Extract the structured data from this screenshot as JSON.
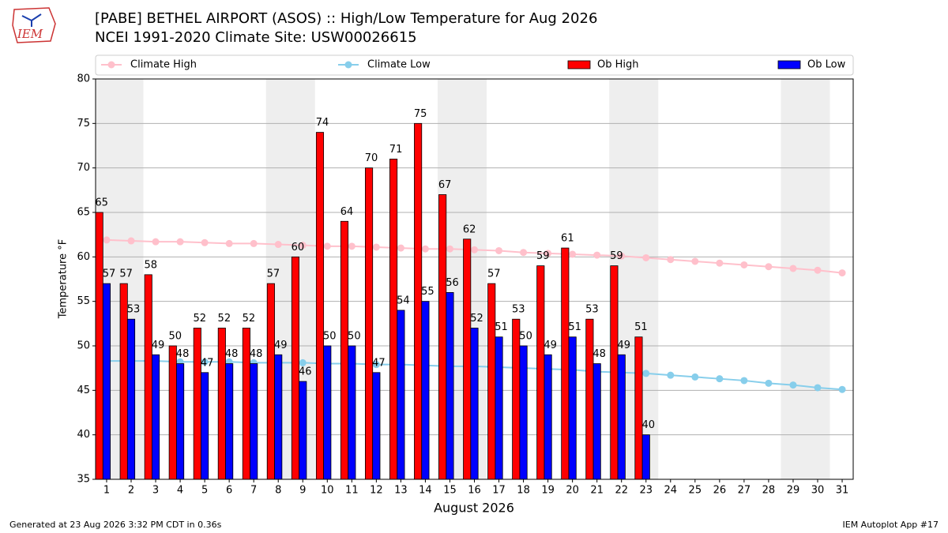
{
  "logo_text": "IEM",
  "footer_left": "Generated at 23 Aug 2026 3:32 PM CDT in 0.36s",
  "footer_right": "IEM Autoplot App #17",
  "chart_data": {
    "type": "bar",
    "title": "[PABE] BETHEL AIRPORT (ASOS) :: High/Low Temperature for Aug 2026",
    "subtitle": "NCEI 1991-2020 Climate Site: USW00026615",
    "xlabel": "August 2026",
    "ylabel": "Temperature °F",
    "x": [
      1,
      2,
      3,
      4,
      5,
      6,
      7,
      8,
      9,
      10,
      11,
      12,
      13,
      14,
      15,
      16,
      17,
      18,
      19,
      20,
      21,
      22,
      23,
      24,
      25,
      26,
      27,
      28,
      29,
      30,
      31
    ],
    "xlim": [
      0.55,
      31.45
    ],
    "xticks": [
      1,
      2,
      3,
      4,
      5,
      6,
      7,
      8,
      9,
      10,
      11,
      12,
      13,
      14,
      15,
      16,
      17,
      18,
      19,
      20,
      21,
      22,
      23,
      24,
      25,
      26,
      27,
      28,
      29,
      30,
      31
    ],
    "ylim": [
      35,
      80
    ],
    "yticks": [
      35,
      40,
      45,
      50,
      55,
      60,
      65,
      70,
      75,
      80
    ],
    "grid": true,
    "weekend_shading": [
      [
        0.5,
        2.5
      ],
      [
        7.5,
        9.5
      ],
      [
        14.5,
        16.5
      ],
      [
        21.5,
        23.5
      ],
      [
        28.5,
        30.5
      ]
    ],
    "series": [
      {
        "name": "Climate High",
        "style": "line",
        "color": "#ffc0cb",
        "values": [
          61.9,
          61.8,
          61.7,
          61.7,
          61.6,
          61.5,
          61.5,
          61.4,
          61.3,
          61.2,
          61.2,
          61.1,
          61.0,
          60.9,
          60.9,
          60.8,
          60.7,
          60.5,
          60.4,
          60.3,
          60.2,
          60.1,
          59.9,
          59.7,
          59.5,
          59.3,
          59.1,
          58.9,
          58.7,
          58.5,
          58.2
        ]
      },
      {
        "name": "Climate Low",
        "style": "line",
        "color": "#87ceeb",
        "values": [
          48.3,
          48.3,
          48.3,
          48.2,
          48.2,
          48.2,
          48.1,
          48.1,
          48.1,
          48.0,
          48.0,
          47.9,
          47.9,
          47.8,
          47.7,
          47.7,
          47.6,
          47.5,
          47.4,
          47.3,
          47.1,
          47.0,
          46.9,
          46.7,
          46.5,
          46.3,
          46.1,
          45.8,
          45.6,
          45.3,
          45.1
        ]
      },
      {
        "name": "Ob High",
        "style": "bar",
        "color": "#ff0000",
        "offset": -0.3,
        "values": [
          65,
          57,
          58,
          50,
          52,
          52,
          52,
          57,
          60,
          74,
          64,
          70,
          71,
          75,
          67,
          62,
          57,
          53,
          59,
          61,
          53,
          59,
          51,
          null,
          null,
          null,
          null,
          null,
          null,
          null,
          null
        ]
      },
      {
        "name": "Ob Low",
        "style": "bar",
        "color": "#0000ff",
        "offset": 0,
        "values": [
          57,
          53,
          49,
          48,
          47,
          48,
          48,
          49,
          46,
          50,
          50,
          47,
          54,
          55,
          56,
          52,
          51,
          50,
          49,
          51,
          48,
          49,
          40,
          null,
          null,
          null,
          null,
          null,
          null,
          null,
          null
        ]
      }
    ]
  }
}
